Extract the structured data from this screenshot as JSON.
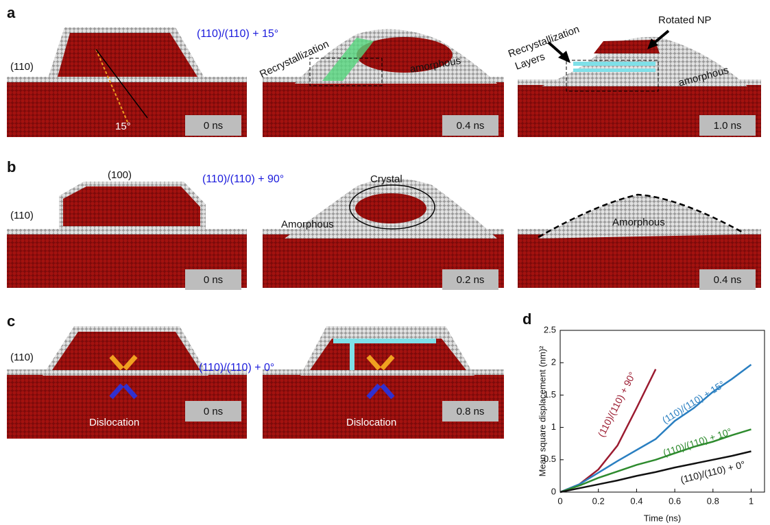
{
  "figure": {
    "a": {
      "label": "a",
      "title": "(110)/(110) + 15°",
      "surface": "(110)",
      "angle": "15°",
      "times": [
        "0 ns",
        "0.4 ns",
        "1.0 ns"
      ],
      "notes": [
        "Recrystallization",
        "amorphous",
        "Recrystallization",
        "Layers",
        "Rotated NP",
        "amorphous"
      ]
    },
    "b": {
      "label": "b",
      "title": "(110)/(110) + 90°",
      "surface": "(110)",
      "facet": "(100)",
      "times": [
        "0 ns",
        "0.2 ns",
        "0.4 ns"
      ],
      "notes": [
        "Crystal",
        "Amorphous",
        "Amorphous"
      ]
    },
    "c": {
      "label": "c",
      "title": "(110)/(110) + 0°",
      "surface": "(110)",
      "times": [
        "0 ns",
        "0.8 ns"
      ],
      "notes": [
        "Dislocation",
        "Dislocation"
      ]
    }
  },
  "chart_data": {
    "type": "line",
    "panel_label": "d",
    "x_label": "Time (ns)",
    "y_label": "Mean square displacement (nm)²",
    "x": [
      0,
      0.1,
      0.2,
      0.3,
      0.4,
      0.5,
      0.6,
      0.7,
      0.8,
      0.9,
      1.0
    ],
    "series": [
      {
        "name": "(110)/(110) + 90°",
        "color": "#9b1b30",
        "values": [
          0,
          0.12,
          0.35,
          0.72,
          1.3,
          1.9,
          null,
          null,
          null,
          null,
          null
        ]
      },
      {
        "name": "(110)/(110) + 15°",
        "color": "#2a7fc1",
        "values": [
          0,
          0.12,
          0.3,
          0.48,
          0.65,
          0.82,
          1.1,
          1.3,
          1.55,
          1.75,
          1.97
        ]
      },
      {
        "name": "(110)/(110) + 10°",
        "color": "#2e8b2e",
        "values": [
          0,
          0.1,
          0.22,
          0.32,
          0.42,
          0.5,
          0.6,
          0.7,
          0.78,
          0.88,
          0.97
        ]
      },
      {
        "name": "(110)/(110) + 0°",
        "color": "#111111",
        "values": [
          0,
          0.06,
          0.12,
          0.18,
          0.25,
          0.31,
          0.38,
          0.44,
          0.5,
          0.56,
          0.63
        ]
      }
    ],
    "xlim": [
      0,
      1.07
    ],
    "ylim": [
      0,
      2.5
    ],
    "xticks": [
      0,
      0.2,
      0.4,
      0.6,
      0.8,
      1
    ],
    "yticks": [
      0,
      0.5,
      1,
      1.5,
      2,
      2.5
    ]
  }
}
